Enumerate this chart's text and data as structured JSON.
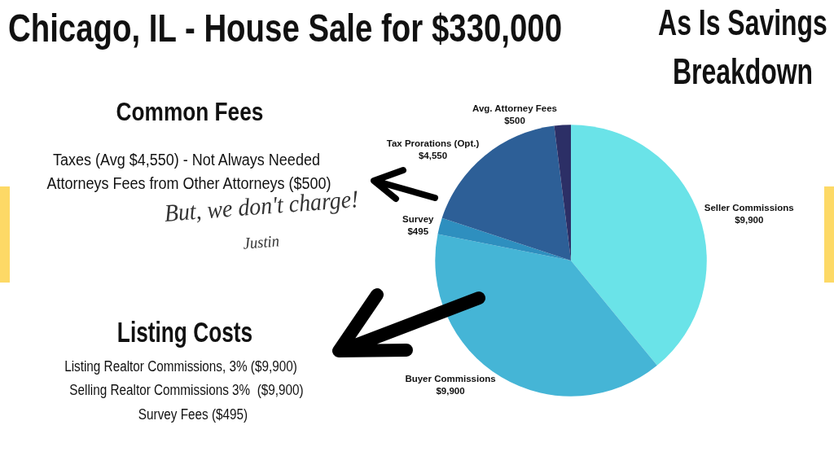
{
  "chart_data": {
    "type": "pie",
    "title": "Chicago, IL - House Sale for $330,000",
    "subtitle": "As Is Savings Breakdown",
    "categories": [
      "Seller Commissions",
      "Buyer Commissions",
      "Survey",
      "Tax Prorations (Opt.)",
      "Avg. Attorney Fees"
    ],
    "values": [
      9900,
      9900,
      495,
      4550,
      500
    ],
    "colors": [
      "#6ae3e8",
      "#45b5d6",
      "#2e8fbf",
      "#2d5f97",
      "#2c2f66"
    ],
    "value_labels": [
      "$9,900",
      "$9,900",
      "$495",
      "$4,550",
      "$500"
    ],
    "annotations": [
      "Common Fees",
      "Taxes (Avg $4,550) - Not Always Needed",
      "Attorneys Fees from Other Attorneys ($500)",
      "But, we don't charge!",
      "Justin",
      "Listing Costs",
      "Listing Realtor Commissions, 3% ($9,900)",
      "Selling Realtor Commissions 3%  ($9,900)",
      "Survey Fees ($495)"
    ]
  }
}
